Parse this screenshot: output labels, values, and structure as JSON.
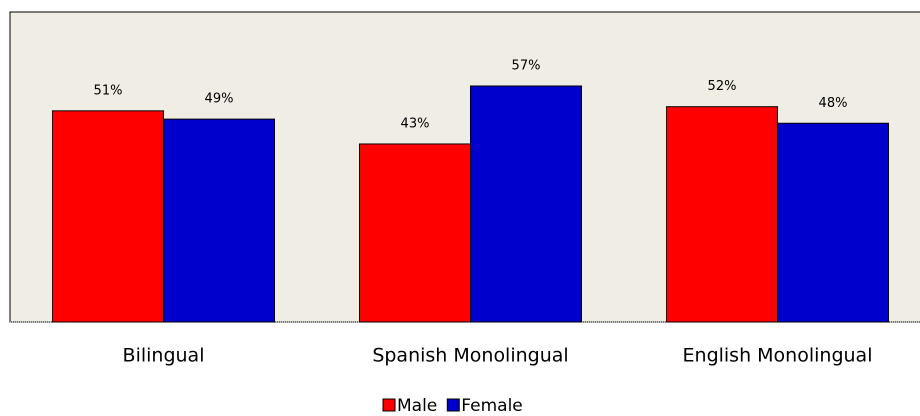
{
  "chart_data": {
    "type": "bar",
    "categories": [
      "Bilingual",
      "Spanish Monolingual",
      "English Monolingual"
    ],
    "series": [
      {
        "name": "Male",
        "color": "#ff0000",
        "values": [
          51,
          43,
          52
        ],
        "value_labels": [
          "51%",
          "43%",
          "52%"
        ]
      },
      {
        "name": "Female",
        "color": "#0000cc",
        "values": [
          49,
          57,
          48
        ],
        "value_labels": [
          "49%",
          "57%",
          "48%"
        ]
      }
    ],
    "legend": "bottom"
  }
}
